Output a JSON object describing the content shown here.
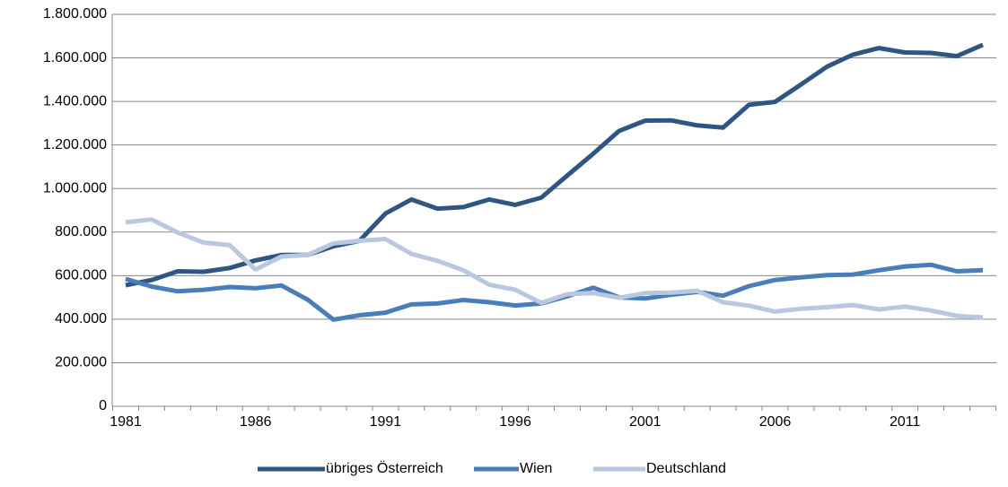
{
  "chart_data": {
    "type": "line",
    "categories": [
      "1981",
      null,
      null,
      null,
      null,
      "1986",
      null,
      null,
      null,
      null,
      "1991",
      null,
      null,
      null,
      null,
      "1996",
      null,
      null,
      null,
      null,
      "2001",
      null,
      null,
      null,
      null,
      "2006",
      null,
      null,
      null,
      null,
      "2011",
      null,
      null,
      null
    ],
    "series": [
      {
        "name": "übriges Österreich",
        "color": "#2f5583",
        "values": [
          556000,
          580000,
          620000,
          618000,
          635000,
          670000,
          695000,
          695000,
          735000,
          760000,
          885000,
          950000,
          908000,
          915000,
          950000,
          925000,
          958000,
          1060000,
          1160000,
          1265000,
          1312000,
          1313000,
          1290000,
          1280000,
          1385000,
          1398000,
          1478000,
          1560000,
          1615000,
          1645000,
          1625000,
          1623000,
          1608000,
          1660000
        ]
      },
      {
        "name": "Wien",
        "color": "#4a7ebb",
        "values": [
          585000,
          550000,
          528000,
          535000,
          548000,
          542000,
          555000,
          490000,
          398000,
          418000,
          430000,
          468000,
          472000,
          488000,
          478000,
          463000,
          472000,
          505000,
          545000,
          500000,
          495000,
          512000,
          525000,
          508000,
          552000,
          580000,
          592000,
          602000,
          605000,
          625000,
          642000,
          650000,
          620000,
          625000
        ]
      },
      {
        "name": "Deutschland",
        "color": "#b9c7df",
        "values": [
          845000,
          858000,
          798000,
          752000,
          740000,
          628000,
          688000,
          695000,
          748000,
          760000,
          768000,
          700000,
          668000,
          625000,
          558000,
          535000,
          475000,
          515000,
          520000,
          498000,
          520000,
          522000,
          530000,
          478000,
          462000,
          435000,
          448000,
          455000,
          465000,
          445000,
          458000,
          440000,
          415000,
          408000
        ]
      }
    ],
    "ylim": [
      0,
      1800000
    ],
    "yticks": [
      0,
      {
        "value": 200000,
        "label": "200.000"
      },
      {
        "value": 400000,
        "label": "400.000"
      },
      {
        "value": 600000,
        "label": "600.000"
      },
      {
        "value": 800000,
        "label": "800.000"
      },
      {
        "value": 1000000,
        "label": "1.000.000"
      },
      {
        "value": 1200000,
        "label": "1.200.000"
      },
      {
        "value": 1400000,
        "label": "1.400.000"
      },
      {
        "value": 1600000,
        "label": "1.600.000"
      },
      {
        "value": 1800000,
        "label": "1.800.000"
      }
    ],
    "grid": true,
    "legend": "bottom"
  }
}
